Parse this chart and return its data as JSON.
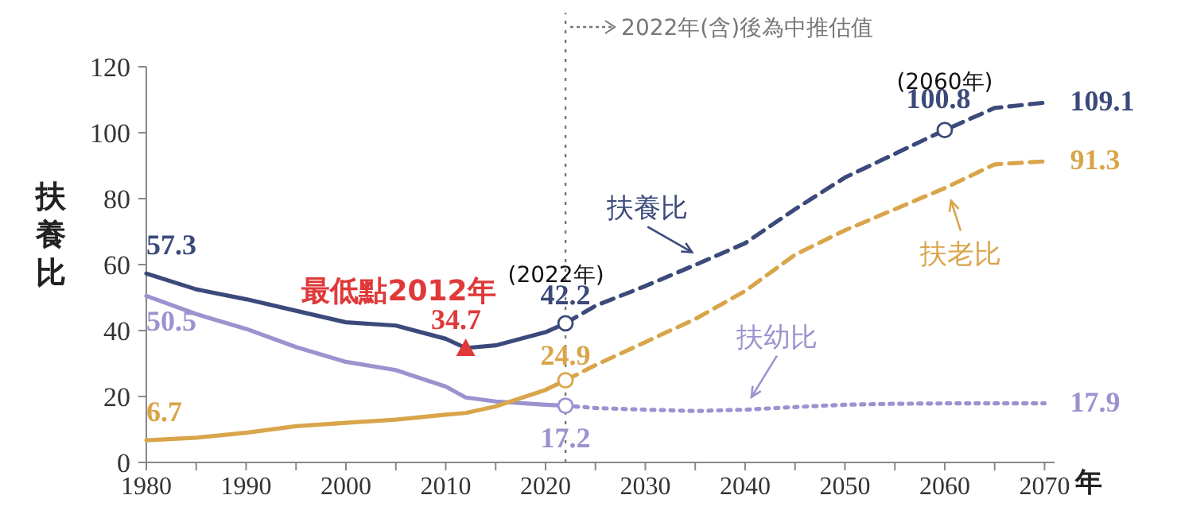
{
  "chart_data": {
    "type": "line",
    "ylabel": "扶養比",
    "xlabel": "年",
    "xlim": [
      1980,
      2071
    ],
    "ylim": [
      0,
      120
    ],
    "xticks": [
      1980,
      {
        "value": 1985,
        "label": null
      },
      1990,
      {
        "value": 1995,
        "label": null
      },
      2000,
      {
        "value": 2005,
        "label": null
      },
      2010,
      {
        "value": 2015,
        "label": null
      },
      2020,
      {
        "value": 2025,
        "label": null
      },
      2030,
      {
        "value": 2035,
        "label": null
      },
      2040,
      {
        "value": 2045,
        "label": null
      },
      2050,
      {
        "value": 2055,
        "label": null
      },
      2060,
      {
        "value": 2065,
        "label": null
      },
      2070
    ],
    "yticks": [
      0,
      20,
      40,
      60,
      80,
      100,
      120
    ],
    "grid": false,
    "series": [
      {
        "color": "#3b4a7a",
        "line_style": "solid",
        "marker": "none",
        "x": [
          1980,
          1985,
          1990,
          1995,
          2000,
          2005,
          2010,
          2012,
          2015,
          2020,
          2022
        ],
        "values": [
          57.3,
          52.5,
          49.5,
          46,
          42.5,
          41.5,
          37.5,
          34.7,
          35.5,
          39.5,
          42.2
        ],
        "value_labels": [
          "57.3",
          null,
          null,
          null,
          null,
          null,
          null,
          null,
          null,
          null,
          "42.2"
        ]
      },
      {
        "color": "#9b93cf",
        "line_style": "solid",
        "marker": "none",
        "x": [
          1980,
          1985,
          1990,
          1995,
          2000,
          2005,
          2010,
          2012,
          2015,
          2020,
          2022
        ],
        "values": [
          50.5,
          45,
          40.5,
          35,
          30.5,
          28,
          23,
          19.7,
          18.5,
          17.5,
          17.2
        ],
        "value_labels": [
          "50.5",
          null,
          null,
          null,
          null,
          null,
          null,
          null,
          null,
          null,
          "17.2"
        ]
      },
      {
        "color": "#d9a54a",
        "line_style": "solid",
        "marker": "none",
        "x": [
          1980,
          1985,
          1990,
          1995,
          2000,
          2005,
          2010,
          2012,
          2015,
          2020,
          2022
        ],
        "values": [
          6.7,
          7.5,
          9,
          11,
          12,
          13,
          14.5,
          15,
          17,
          22,
          24.9
        ],
        "value_labels": [
          "6.7",
          null,
          null,
          null,
          null,
          null,
          null,
          null,
          null,
          null,
          "24.9"
        ]
      },
      {
        "name": "扶養比",
        "color": "#3b4a7a",
        "line_style": "dashed",
        "marker": "none",
        "x": [
          2022,
          2025,
          2030,
          2035,
          2040,
          2045,
          2050,
          2055,
          2060,
          2065,
          2070
        ],
        "values": [
          42.2,
          47.5,
          53.5,
          59.9,
          66.5,
          76.8,
          86.4,
          93.6,
          100.8,
          107.5,
          109.1
        ],
        "value_labels": [
          null,
          null,
          null,
          null,
          null,
          null,
          null,
          null,
          "100.8",
          null,
          "109.1"
        ]
      },
      {
        "name": "扶老比",
        "color": "#d9a54a",
        "line_style": "dashed",
        "marker": "none",
        "x": [
          2022,
          2025,
          2030,
          2035,
          2040,
          2045,
          2050,
          2055,
          2060,
          2065,
          2070
        ],
        "values": [
          24.9,
          29.5,
          36.5,
          43.5,
          52,
          63,
          70.4,
          76.8,
          83.2,
          90.4,
          91.3
        ],
        "value_labels": [
          null,
          null,
          null,
          null,
          null,
          null,
          null,
          null,
          null,
          null,
          "91.3"
        ]
      },
      {
        "name": "扶幼比",
        "color": "#9b93cf",
        "line_style": "dotted",
        "marker": "none",
        "x": [
          2022,
          2025,
          2030,
          2035,
          2040,
          2045,
          2050,
          2055,
          2060,
          2065,
          2070
        ],
        "values": [
          17.2,
          16.5,
          16.0,
          15.6,
          16.0,
          16.8,
          17.5,
          17.8,
          17.9,
          17.9,
          17.9
        ],
        "value_labels": [
          null,
          null,
          null,
          null,
          null,
          null,
          null,
          null,
          null,
          null,
          "17.9"
        ]
      },
      {
        "type": "scatter",
        "marker": "circle",
        "colors": [
          "#3b4a7a",
          "#9b93cf",
          "#d9a54a",
          "#3b4a7a"
        ],
        "x": [
          2022,
          2022,
          2022,
          2060
        ],
        "values": [
          42.2,
          17.2,
          24.9,
          100.8
        ]
      },
      {
        "type": "scatter",
        "marker": "triangle",
        "color": "#e0393a",
        "x": [
          2012
        ],
        "values": [
          34.7
        ],
        "value_labels": [
          "34.7"
        ]
      }
    ],
    "ref_lines": [
      {
        "axis": "x",
        "value": 2022,
        "label": "2022年(含)後為中推估值",
        "color": "#777777",
        "line_style": "dotted"
      }
    ],
    "annotations": [
      {
        "text": "最低點2012年",
        "x": 2012,
        "y": 34.7
      },
      {
        "text": "(2022年)",
        "x": 2022,
        "y": 42.2
      },
      {
        "text": "(2060年)",
        "x": 2060,
        "y": 100.8
      }
    ]
  }
}
